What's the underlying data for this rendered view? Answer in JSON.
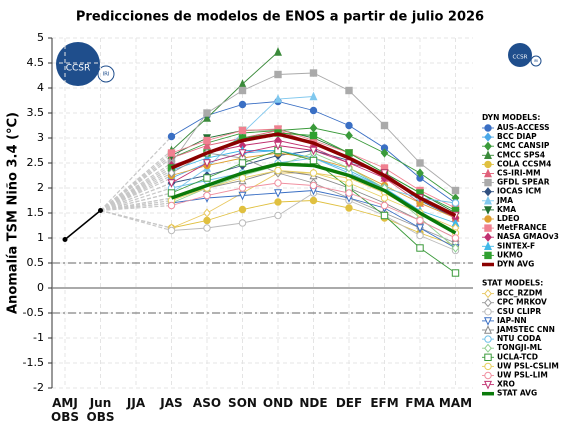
{
  "chart_data": {
    "type": "line",
    "title": "Predicciones de modelos de ENOS a partir de julio 2026",
    "y_label": "Anomalía TSM Niño 3.4 (°C)",
    "logos": [
      "CCSR",
      "IRI"
    ],
    "categories": [
      "AMJ\nOBS",
      "Jun\nOBS",
      "JJA",
      "JAS",
      "ASO",
      "SON",
      "OND",
      "NDE",
      "DEF",
      "EFM",
      "FMA",
      "MAM"
    ],
    "ylim": [
      -2,
      5
    ],
    "yticks": [
      -2,
      -1.5,
      -1,
      -0.5,
      0,
      0.5,
      1,
      1.5,
      2,
      2.5,
      3,
      3.5,
      4,
      4.5,
      5
    ],
    "grid": true,
    "threshold_lines": [
      0.5,
      -0.5
    ],
    "observed": {
      "color": "#000000",
      "values": [
        0.97,
        1.55,
        null,
        null,
        null,
        null,
        null,
        null,
        null,
        null,
        null,
        null
      ]
    },
    "legend_headings": {
      "dyn": "DYN MODELS:",
      "stat": "STAT MODELS:"
    },
    "series": [
      {
        "name": "AUS-ACCESS",
        "group": "dyn",
        "color": "#3a6fc4",
        "marker": "circle",
        "filled": true,
        "values": [
          null,
          null,
          null,
          3.03,
          3.45,
          3.67,
          3.73,
          3.55,
          3.25,
          2.8,
          2.2,
          1.7
        ]
      },
      {
        "name": "BCC DIAP",
        "group": "dyn",
        "color": "#4aa8e8",
        "marker": "diamond",
        "filled": true,
        "values": [
          null,
          null,
          null,
          2.2,
          2.5,
          2.7,
          2.75,
          2.6,
          2.3,
          2.0,
          1.5,
          1.1
        ]
      },
      {
        "name": "CMC CANSIP",
        "group": "dyn",
        "color": "#3a9a3a",
        "marker": "diamond",
        "filled": true,
        "values": [
          null,
          null,
          null,
          2.6,
          2.9,
          3.1,
          3.15,
          3.2,
          3.05,
          2.7,
          2.3,
          1.8
        ]
      },
      {
        "name": "CMCC SPS4",
        "group": "dyn",
        "color": "#3a8a3a",
        "marker": "triangle",
        "filled": true,
        "values": [
          null,
          null,
          null,
          2.75,
          3.4,
          4.08,
          4.72,
          null,
          null,
          null,
          null,
          null
        ]
      },
      {
        "name": "COLA CCSM4",
        "group": "dyn",
        "color": "#e0c040",
        "marker": "circle",
        "filled": true,
        "values": [
          null,
          null,
          null,
          1.2,
          1.35,
          1.57,
          1.72,
          1.75,
          1.6,
          1.4,
          1.1,
          0.85
        ]
      },
      {
        "name": "CS-IRI-MM",
        "group": "dyn",
        "color": "#e0607a",
        "marker": "triangle",
        "filled": true,
        "values": [
          null,
          null,
          null,
          2.6,
          2.85,
          3.0,
          3.15,
          2.9,
          2.6,
          2.2,
          1.7,
          1.4
        ]
      },
      {
        "name": "GFDL SPEAR",
        "group": "dyn",
        "color": "#aaaaaa",
        "marker": "square",
        "filled": true,
        "values": [
          null,
          null,
          null,
          2.5,
          3.5,
          3.95,
          4.27,
          4.3,
          3.95,
          3.25,
          2.5,
          1.95
        ]
      },
      {
        "name": "IOCAS ICM",
        "group": "dyn",
        "color": "#305080",
        "marker": "diamond",
        "filled": true,
        "values": [
          null,
          null,
          null,
          2.1,
          2.25,
          2.45,
          2.65,
          2.75,
          2.55,
          2.25,
          1.75,
          1.4
        ]
      },
      {
        "name": "JMA",
        "group": "dyn",
        "color": "#80c8ee",
        "marker": "triangle",
        "filled": true,
        "values": [
          null,
          null,
          null,
          1.9,
          2.4,
          3.1,
          3.78,
          3.83,
          null,
          null,
          null,
          null
        ]
      },
      {
        "name": "KMA",
        "group": "dyn",
        "color": "#207030",
        "marker": "triangle-down",
        "filled": true,
        "values": [
          null,
          null,
          null,
          2.65,
          3.0,
          3.15,
          3.17,
          3.0,
          2.7,
          2.3,
          1.9,
          1.5
        ]
      },
      {
        "name": "LDEO",
        "group": "dyn",
        "color": "#e0a030",
        "marker": "circle",
        "filled": true,
        "values": [
          null,
          null,
          null,
          2.25,
          2.45,
          2.6,
          2.7,
          2.6,
          2.4,
          2.05,
          1.7,
          1.4
        ]
      },
      {
        "name": "MetFRANCE",
        "group": "dyn",
        "color": "#f08090",
        "marker": "square",
        "filled": true,
        "values": [
          null,
          null,
          null,
          2.7,
          2.95,
          3.15,
          3.18,
          2.95,
          2.7,
          2.4,
          1.95,
          1.6
        ]
      },
      {
        "name": "NASA GMAOv3",
        "group": "dyn",
        "color": "#c03070",
        "marker": "diamond",
        "filled": true,
        "values": [
          null,
          null,
          null,
          2.45,
          2.7,
          2.85,
          2.95,
          2.8,
          2.5,
          2.2,
          1.8,
          1.4
        ]
      },
      {
        "name": "SINTEX-F",
        "group": "dyn",
        "color": "#40b8e8",
        "marker": "triangle",
        "filled": true,
        "values": [
          null,
          null,
          null,
          2.35,
          2.6,
          2.75,
          2.75,
          2.6,
          2.35,
          2.0,
          1.55,
          1.3
        ]
      },
      {
        "name": "UKMO",
        "group": "dyn",
        "color": "#30a030",
        "marker": "square",
        "filled": true,
        "values": [
          null,
          null,
          null,
          2.4,
          2.7,
          3.0,
          3.1,
          3.05,
          2.7,
          2.3,
          1.9,
          1.55
        ]
      },
      {
        "name": "DYN AVG",
        "group": "dyn",
        "color": "#8b0000",
        "marker": "none",
        "line_width": 3.5,
        "values": [
          null,
          null,
          null,
          2.4,
          2.7,
          2.95,
          3.08,
          2.9,
          2.6,
          2.25,
          1.8,
          1.45
        ]
      },
      {
        "name": "BCC_RZDM",
        "group": "stat",
        "color": "#e8c860",
        "marker": "diamond",
        "filled": false,
        "values": [
          null,
          null,
          null,
          1.2,
          1.5,
          1.9,
          2.3,
          2.3,
          2.2,
          1.9,
          1.5,
          1.2
        ]
      },
      {
        "name": "CPC MRKOV",
        "group": "stat",
        "color": "#999999",
        "marker": "diamond",
        "filled": false,
        "values": [
          null,
          null,
          null,
          2.3,
          2.7,
          2.6,
          2.3,
          2.1,
          1.8,
          1.5,
          1.2,
          0.9
        ]
      },
      {
        "name": "CSU CLIPR",
        "group": "stat",
        "color": "#bbbbbb",
        "marker": "circle",
        "filled": false,
        "values": [
          null,
          null,
          null,
          1.15,
          1.2,
          1.3,
          1.45,
          1.9,
          1.75,
          1.45,
          1.05,
          0.75
        ]
      },
      {
        "name": "IAP-NN",
        "group": "stat",
        "color": "#3a6fc4",
        "marker": "triangle-down",
        "filled": false,
        "values": [
          null,
          null,
          null,
          1.7,
          1.8,
          1.85,
          1.9,
          1.95,
          1.8,
          1.6,
          1.2,
          0.8
        ]
      },
      {
        "name": "JAMSTEC CNN",
        "group": "stat",
        "color": "#888888",
        "marker": "triangle",
        "filled": false,
        "values": [
          null,
          null,
          null,
          1.8,
          2.0,
          2.15,
          2.35,
          2.25,
          2.0,
          1.7,
          1.35,
          1.0
        ]
      },
      {
        "name": "NTU CODA",
        "group": "stat",
        "color": "#70c0e8",
        "marker": "circle",
        "filled": false,
        "values": [
          null,
          null,
          null,
          2.0,
          2.15,
          2.3,
          2.5,
          2.6,
          2.3,
          2.0,
          1.8,
          1.7
        ]
      },
      {
        "name": "TONGJI-ML",
        "group": "stat",
        "color": "#90d090",
        "marker": "diamond",
        "filled": false,
        "values": [
          null,
          null,
          null,
          1.7,
          2.0,
          2.25,
          2.45,
          2.7,
          2.4,
          2.0,
          1.4,
          0.8
        ]
      },
      {
        "name": "UCLA-TCD",
        "group": "stat",
        "color": "#3a9a3a",
        "marker": "square",
        "filled": false,
        "values": [
          null,
          null,
          null,
          1.9,
          2.2,
          2.5,
          2.75,
          2.55,
          2.0,
          1.45,
          0.8,
          0.3
        ]
      },
      {
        "name": "UW PSL-CSLIM",
        "group": "stat",
        "color": "#e8d060",
        "marker": "circle",
        "filled": false,
        "values": [
          null,
          null,
          null,
          1.75,
          2.0,
          2.2,
          2.35,
          2.3,
          2.1,
          1.8,
          1.5,
          1.1
        ]
      },
      {
        "name": "UW PSL-LIM",
        "group": "stat",
        "color": "#f090a0",
        "marker": "circle",
        "filled": false,
        "values": [
          null,
          null,
          null,
          1.65,
          1.85,
          2.0,
          2.1,
          2.05,
          1.9,
          1.65,
          1.35,
          1.0
        ]
      },
      {
        "name": "XRO",
        "group": "stat",
        "color": "#c03070",
        "marker": "triangle-down",
        "filled": false,
        "values": [
          null,
          null,
          null,
          2.1,
          2.5,
          2.7,
          2.85,
          2.75,
          2.5,
          2.3,
          1.8,
          1.45
        ]
      },
      {
        "name": "STAT AVG",
        "group": "stat",
        "color": "#0a7a0a",
        "marker": "none",
        "line_width": 3.5,
        "values": [
          null,
          null,
          null,
          1.8,
          2.05,
          2.3,
          2.48,
          2.45,
          2.25,
          1.95,
          1.5,
          1.1
        ]
      }
    ]
  }
}
